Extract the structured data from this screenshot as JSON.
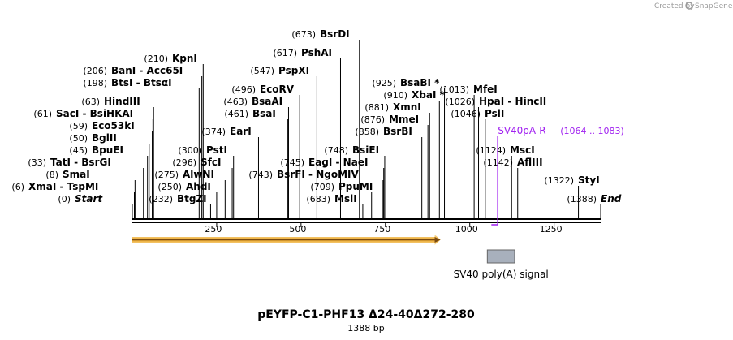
{
  "watermark": {
    "created_by": "Created by",
    "brand": "SnapGene"
  },
  "title": "pEYFP-C1-PHF13 Δ24-40Δ272-280",
  "length_label": "1388 bp",
  "axis": {
    "min": 0,
    "max": 1388,
    "ticks": [
      250,
      500,
      750,
      1000,
      1250
    ]
  },
  "colors": {
    "primer": "#a020f0",
    "orf": "#e8a020",
    "feature_box": "#a8b0bc",
    "text": "#000000"
  },
  "sites": [
    {
      "pos_label": "(0)",
      "name": "Start",
      "italic": true,
      "pos": 0
    },
    {
      "pos_label": "(6)",
      "name": "XmaI  -  TspMI",
      "pos": 6
    },
    {
      "pos_label": "(8)",
      "name": "SmaI",
      "pos": 8
    },
    {
      "pos_label": "(33)",
      "name": "TatI  -  BsrGI",
      "pos": 33
    },
    {
      "pos_label": "(45)",
      "name": "BpuEI",
      "pos": 45
    },
    {
      "pos_label": "(50)",
      "name": "BglII",
      "pos": 50
    },
    {
      "pos_label": "(59)",
      "name": "Eco53kI",
      "pos": 59
    },
    {
      "pos_label": "(61)",
      "name": "SacI  -  BsiHKAI",
      "pos": 61
    },
    {
      "pos_label": "(63)",
      "name": "HindIII",
      "pos": 63
    },
    {
      "pos_label": "(198)",
      "name": "BtsI  -  BtsαI",
      "pos": 198
    },
    {
      "pos_label": "(206)",
      "name": "BanI  -  Acc65I",
      "pos": 206
    },
    {
      "pos_label": "(210)",
      "name": "KpnI",
      "pos": 210
    },
    {
      "pos_label": "(232)",
      "name": "BtgZI",
      "pos": 232
    },
    {
      "pos_label": "(250)",
      "name": "AhdI",
      "pos": 250
    },
    {
      "pos_label": "(275)",
      "name": "AlwNI",
      "pos": 275
    },
    {
      "pos_label": "(296)",
      "name": "SfcI",
      "pos": 296
    },
    {
      "pos_label": "(300)",
      "name": "PstI",
      "pos": 300
    },
    {
      "pos_label": "(374)",
      "name": "EarI",
      "pos": 374
    },
    {
      "pos_label": "(461)",
      "name": "BsaI",
      "pos": 461
    },
    {
      "pos_label": "(463)",
      "name": "BsaAI",
      "pos": 463
    },
    {
      "pos_label": "(496)",
      "name": "EcoRV",
      "pos": 496
    },
    {
      "pos_label": "(547)",
      "name": "PspXI",
      "pos": 547
    },
    {
      "pos_label": "(617)",
      "name": "PshAI",
      "pos": 617
    },
    {
      "pos_label": "(673)",
      "name": "BsrDI",
      "pos": 673
    },
    {
      "pos_label": "(683)",
      "name": "MslI",
      "pos": 683
    },
    {
      "pos_label": "(709)",
      "name": "PpuMI",
      "pos": 709
    },
    {
      "pos_label": "(743)",
      "name": "BsrFI  -  NgoMIV",
      "pos": 743
    },
    {
      "pos_label": "(745)",
      "name": "EagI  -  NaeI",
      "pos": 745
    },
    {
      "pos_label": "(748)",
      "name": "BsiEI",
      "pos": 748
    },
    {
      "pos_label": "(858)",
      "name": "BsrBI",
      "pos": 858
    },
    {
      "pos_label": "(876)",
      "name": "MmeI",
      "pos": 876
    },
    {
      "pos_label": "(881)",
      "name": "XmnI",
      "pos": 881
    },
    {
      "pos_label": "(910)",
      "name": "XbaI *",
      "pos": 910
    },
    {
      "pos_label": "(925)",
      "name": "BsaBI *",
      "pos": 925
    },
    {
      "pos_label": "(1013)",
      "name": "MfeI",
      "pos": 1013
    },
    {
      "pos_label": "(1026)",
      "name": "HpaI  -  HincII",
      "pos": 1026
    },
    {
      "pos_label": "(1046)",
      "name": "PslI",
      "pos": 1046
    },
    {
      "pos_label": "(1124)",
      "name": "MscI",
      "pos": 1124
    },
    {
      "pos_label": "(1142)",
      "name": "AflIII",
      "pos": 1142
    },
    {
      "pos_label": "(1322)",
      "name": "StyI",
      "pos": 1322
    },
    {
      "pos_label": "(1388)",
      "name": "End",
      "italic": true,
      "pos": 1388
    }
  ],
  "primer": {
    "name": "SV40pA-R",
    "range_label": "(1064 .. 1083)",
    "start": 1064,
    "end": 1083
  },
  "orf": {
    "start": 0,
    "end": 913
  },
  "features": [
    {
      "name": "SV40 poly(A) signal",
      "start": 1052,
      "end": 1133
    }
  ]
}
